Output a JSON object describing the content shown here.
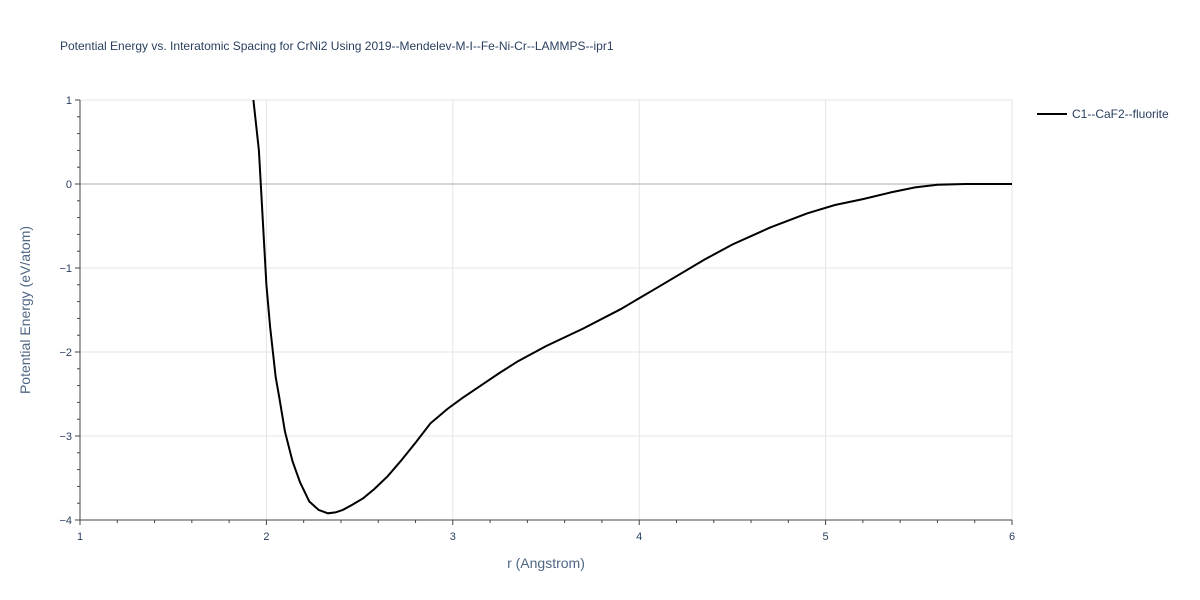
{
  "chart_data": {
    "type": "line",
    "title": "Potential Energy vs. Interatomic Spacing for CrNi2 Using 2019--Mendelev-M-I--Fe-Ni-Cr--LAMMPS--ipr1",
    "xlabel": "r (Angstrom)",
    "ylabel": "Potential Energy (eV/atom)",
    "xlim": [
      1,
      6
    ],
    "ylim": [
      -4,
      1
    ],
    "xticks": [
      "1",
      "2",
      "3",
      "4",
      "5",
      "6"
    ],
    "yticks": [
      "1",
      "0",
      "−1",
      "−2",
      "−3",
      "−4"
    ],
    "grid": true,
    "legend_position": "top-right",
    "series": [
      {
        "name": "C1--CaF2--fluorite",
        "color": "#000000",
        "x": [
          1.93,
          1.96,
          2.0,
          2.02,
          2.05,
          2.07,
          2.1,
          2.14,
          2.18,
          2.23,
          2.28,
          2.33,
          2.37,
          2.41,
          2.46,
          2.52,
          2.58,
          2.65,
          2.72,
          2.8,
          2.88,
          2.97,
          3.05,
          3.15,
          3.25,
          3.35,
          3.5,
          3.7,
          3.9,
          4.1,
          4.35,
          4.5,
          4.7,
          4.9,
          5.05,
          5.2,
          5.35,
          5.48,
          5.6,
          5.75,
          5.9,
          6.0
        ],
        "y": [
          1.0,
          0.4,
          -1.2,
          -1.7,
          -2.3,
          -2.55,
          -2.95,
          -3.3,
          -3.55,
          -3.78,
          -3.88,
          -3.92,
          -3.91,
          -3.88,
          -3.82,
          -3.74,
          -3.63,
          -3.48,
          -3.3,
          -3.08,
          -2.85,
          -2.68,
          -2.55,
          -2.4,
          -2.25,
          -2.11,
          -1.93,
          -1.72,
          -1.49,
          -1.23,
          -0.9,
          -0.72,
          -0.52,
          -0.35,
          -0.25,
          -0.18,
          -0.1,
          -0.04,
          -0.01,
          0.0,
          0.0,
          0.0
        ]
      }
    ]
  }
}
